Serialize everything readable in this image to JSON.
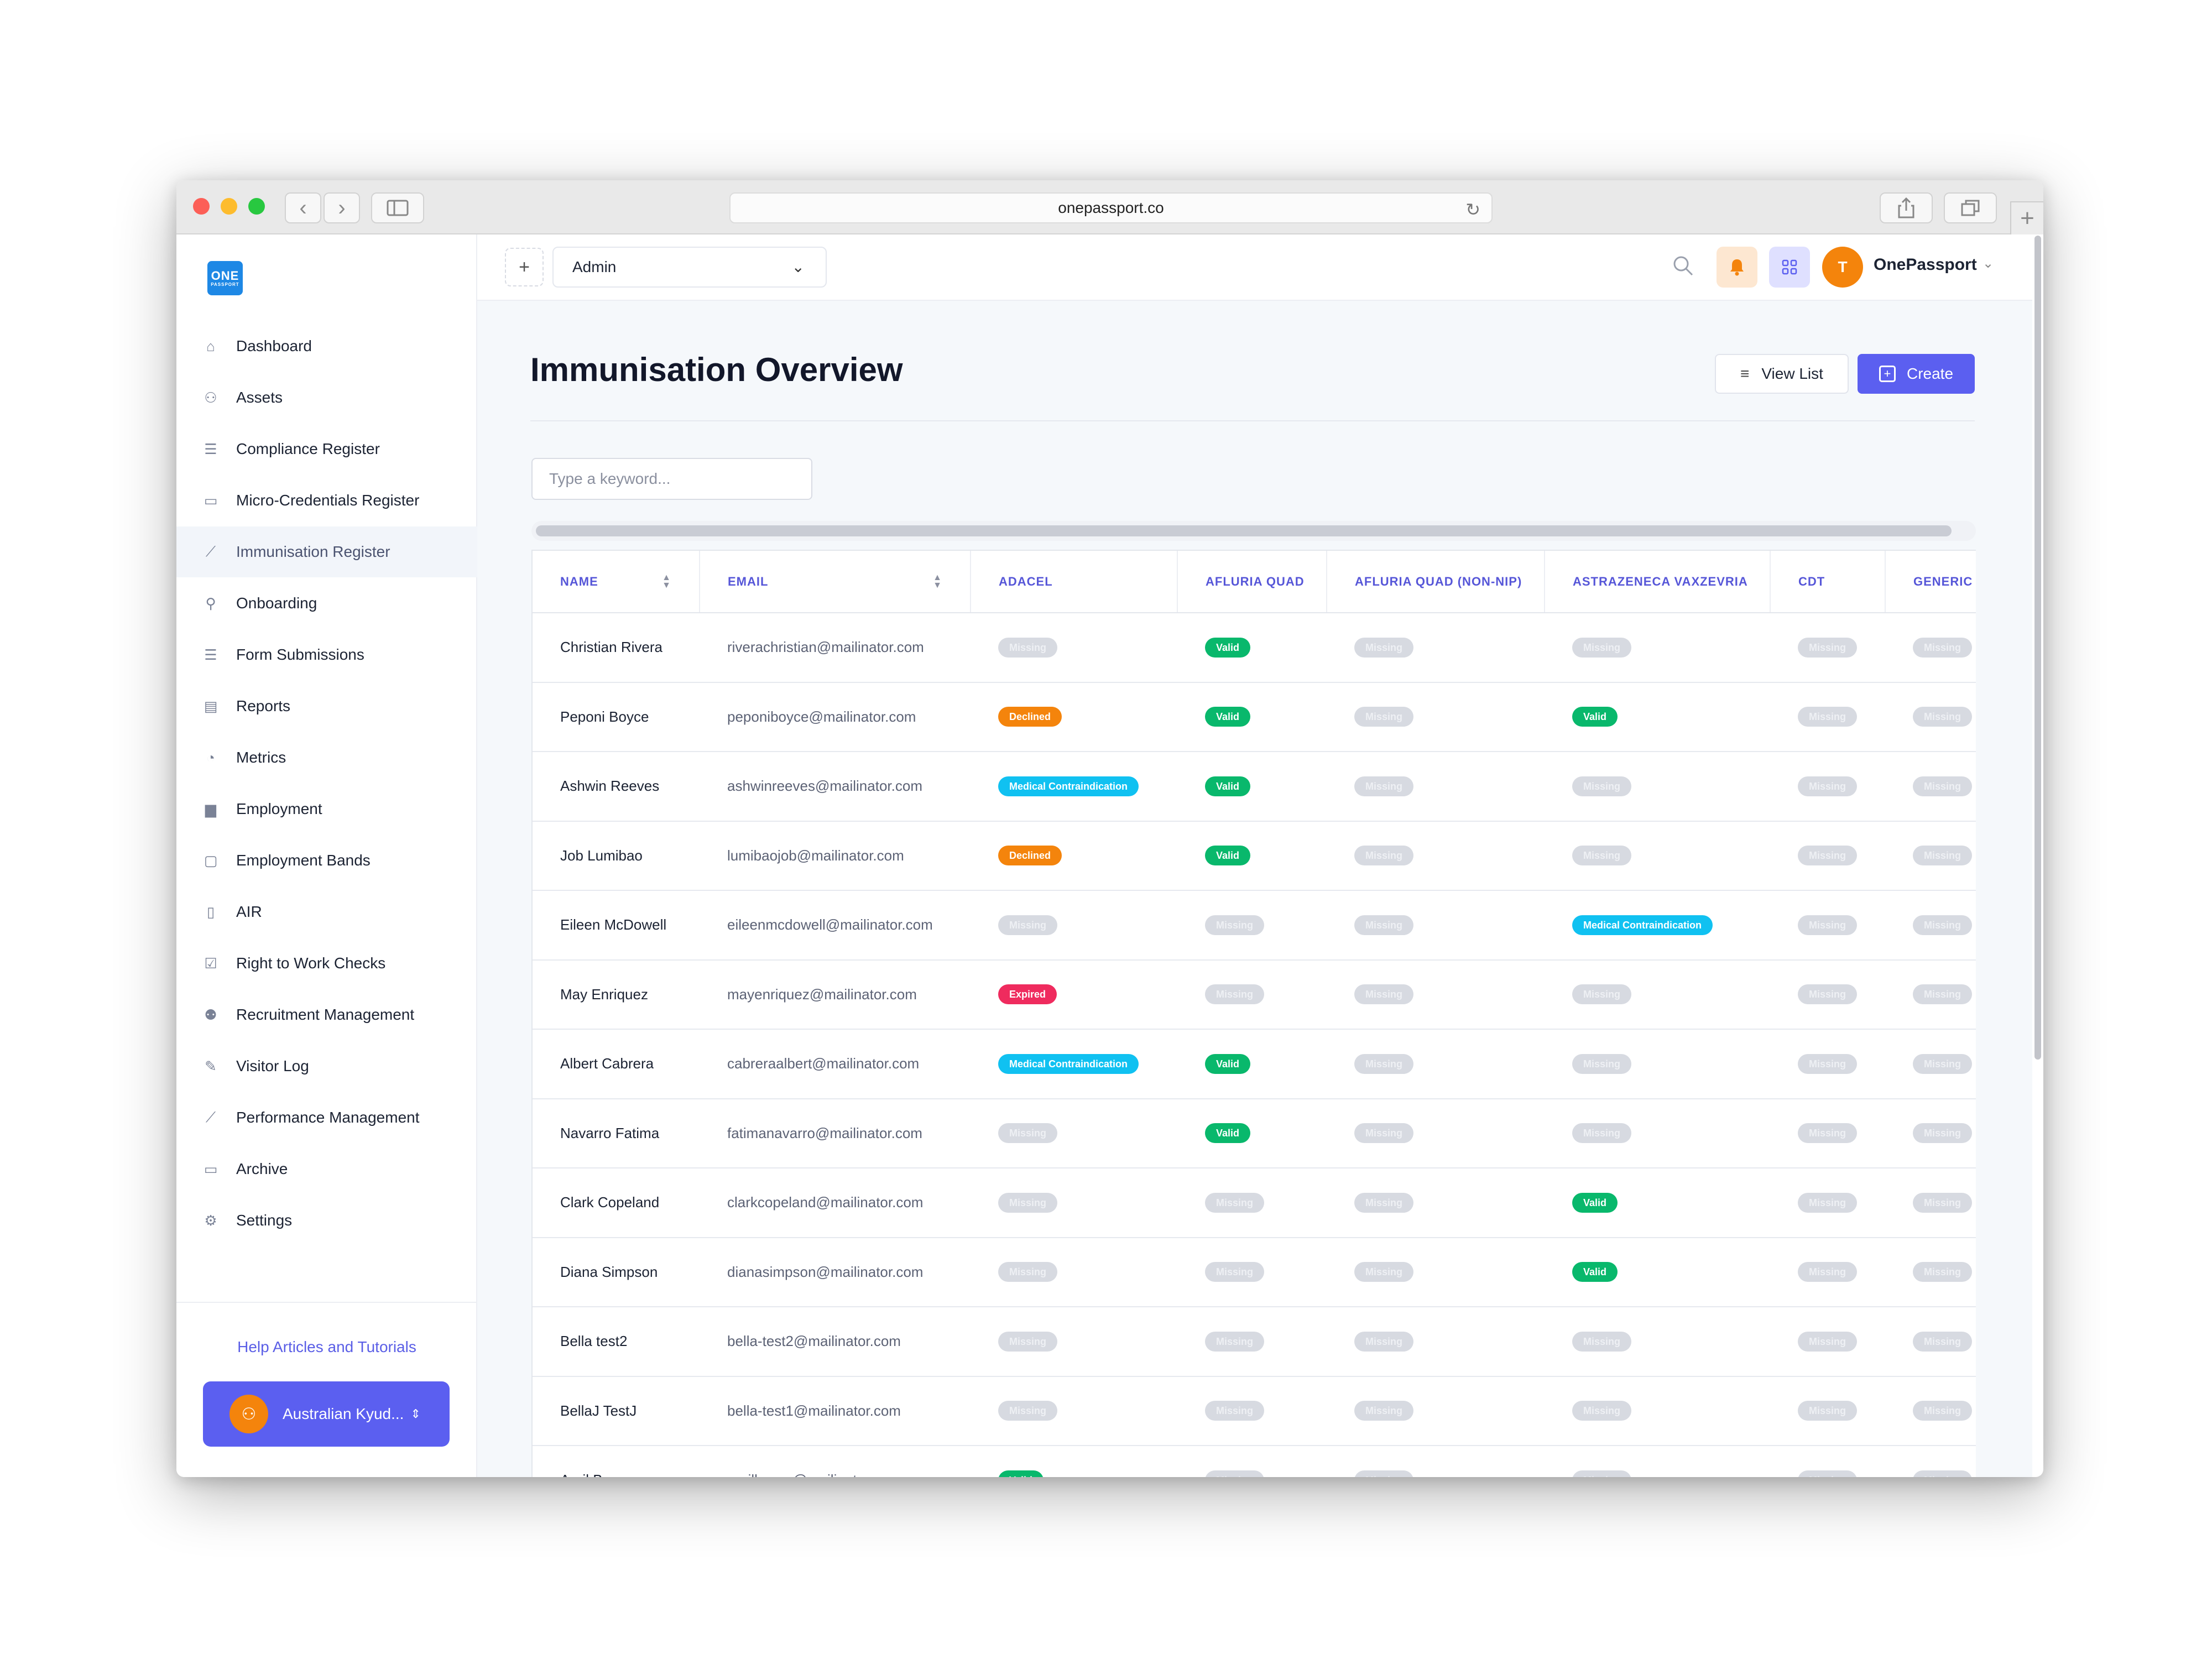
{
  "browser": {
    "url": "onepassport.co"
  },
  "sidebar": {
    "logo_line1": "ONE",
    "logo_line2": "PASSPORT",
    "items": [
      {
        "label": "Dashboard",
        "icon": "home-icon"
      },
      {
        "label": "Assets",
        "icon": "users-icon"
      },
      {
        "label": "Compliance Register",
        "icon": "list-icon"
      },
      {
        "label": "Micro-Credentials Register",
        "icon": "card-icon"
      },
      {
        "label": "Immunisation Register",
        "icon": "syringe-icon"
      },
      {
        "label": "Onboarding",
        "icon": "user-plus-icon"
      },
      {
        "label": "Form Submissions",
        "icon": "list-icon"
      },
      {
        "label": "Reports",
        "icon": "document-icon"
      },
      {
        "label": "Metrics",
        "icon": "pie-chart-icon"
      },
      {
        "label": "Employment",
        "icon": "briefcase-icon"
      },
      {
        "label": "Employment Bands",
        "icon": "briefcase-outline-icon"
      },
      {
        "label": "AIR",
        "icon": "file-dollar-icon"
      },
      {
        "label": "Right to Work Checks",
        "icon": "clipboard-check-icon"
      },
      {
        "label": "Recruitment Management",
        "icon": "team-icon"
      },
      {
        "label": "Visitor Log",
        "icon": "pen-icon"
      },
      {
        "label": "Performance Management",
        "icon": "trend-chart-icon"
      },
      {
        "label": "Archive",
        "icon": "archive-icon"
      },
      {
        "label": "Settings",
        "icon": "gear-icon"
      }
    ],
    "active_index": 4,
    "help_link": "Help Articles and Tutorials",
    "org_name": "Australian Kyud..."
  },
  "topbar": {
    "role": "Admin",
    "avatar_letter": "T",
    "username": "OnePassport"
  },
  "page": {
    "title": "Immunisation Overview",
    "view_list_label": "View List",
    "create_label": "Create",
    "search_placeholder": "Type a keyword..."
  },
  "table": {
    "columns": [
      "NAME",
      "EMAIL",
      "ADACEL",
      "AFLURIA QUAD",
      "AFLURIA QUAD (NON-NIP)",
      "ASTRAZENECA VAXZEVRIA",
      "CDT",
      "GENERIC D"
    ],
    "rows": [
      {
        "name": "Christian Rivera",
        "email": "riverachristian@mailinator.com",
        "statuses": [
          "Missing",
          "Valid",
          "Missing",
          "Missing",
          "Missing",
          "Missing"
        ]
      },
      {
        "name": "Peponi Boyce",
        "email": "peponiboyce@mailinator.com",
        "statuses": [
          "Declined",
          "Valid",
          "Missing",
          "Valid",
          "Missing",
          "Missing"
        ]
      },
      {
        "name": "Ashwin Reeves",
        "email": "ashwinreeves@mailinator.com",
        "statuses": [
          "Medical Contraindication",
          "Valid",
          "Missing",
          "Missing",
          "Missing",
          "Missing"
        ]
      },
      {
        "name": "Job Lumibao",
        "email": "lumibaojob@mailinator.com",
        "statuses": [
          "Declined",
          "Valid",
          "Missing",
          "Missing",
          "Missing",
          "Missing"
        ]
      },
      {
        "name": "Eileen McDowell",
        "email": "eileenmcdowell@mailinator.com",
        "statuses": [
          "Missing",
          "Missing",
          "Missing",
          "Medical Contraindication",
          "Missing",
          "Missing"
        ]
      },
      {
        "name": "May Enriquez",
        "email": "mayenriquez@mailinator.com",
        "statuses": [
          "Expired",
          "Missing",
          "Missing",
          "Missing",
          "Missing",
          "Missing"
        ]
      },
      {
        "name": "Albert Cabrera",
        "email": "cabreraalbert@mailinator.com",
        "statuses": [
          "Medical Contraindication",
          "Valid",
          "Missing",
          "Missing",
          "Missing",
          "Missing"
        ]
      },
      {
        "name": "Navarro Fatima",
        "email": "fatimanavarro@mailinator.com",
        "statuses": [
          "Missing",
          "Valid",
          "Missing",
          "Missing",
          "Missing",
          "Missing"
        ]
      },
      {
        "name": "Clark Copeland",
        "email": "clarkcopeland@mailinator.com",
        "statuses": [
          "Missing",
          "Missing",
          "Missing",
          "Valid",
          "Missing",
          "Missing"
        ]
      },
      {
        "name": "Diana Simpson",
        "email": "dianasimpson@mailinator.com",
        "statuses": [
          "Missing",
          "Missing",
          "Missing",
          "Valid",
          "Missing",
          "Missing"
        ]
      },
      {
        "name": "Bella test2",
        "email": "bella-test2@mailinator.com",
        "statuses": [
          "Missing",
          "Missing",
          "Missing",
          "Missing",
          "Missing",
          "Missing"
        ]
      },
      {
        "name": "BellaJ TestJ",
        "email": "bella-test1@mailinator.com",
        "statuses": [
          "Missing",
          "Missing",
          "Missing",
          "Missing",
          "Missing",
          "Missing"
        ]
      },
      {
        "name": "April Baysa",
        "email": "aprilbaysa@mailinator.com",
        "statuses": [
          "Valid",
          "Missing",
          "Missing",
          "Missing",
          "Missing",
          "Missing"
        ]
      }
    ]
  },
  "colors": {
    "accent": "#5b5ff0",
    "valid": "#09b86c",
    "declined": "#f4840c",
    "expired": "#ef2b5e",
    "medical": "#10c1f1",
    "missing": "#d7dae1"
  }
}
